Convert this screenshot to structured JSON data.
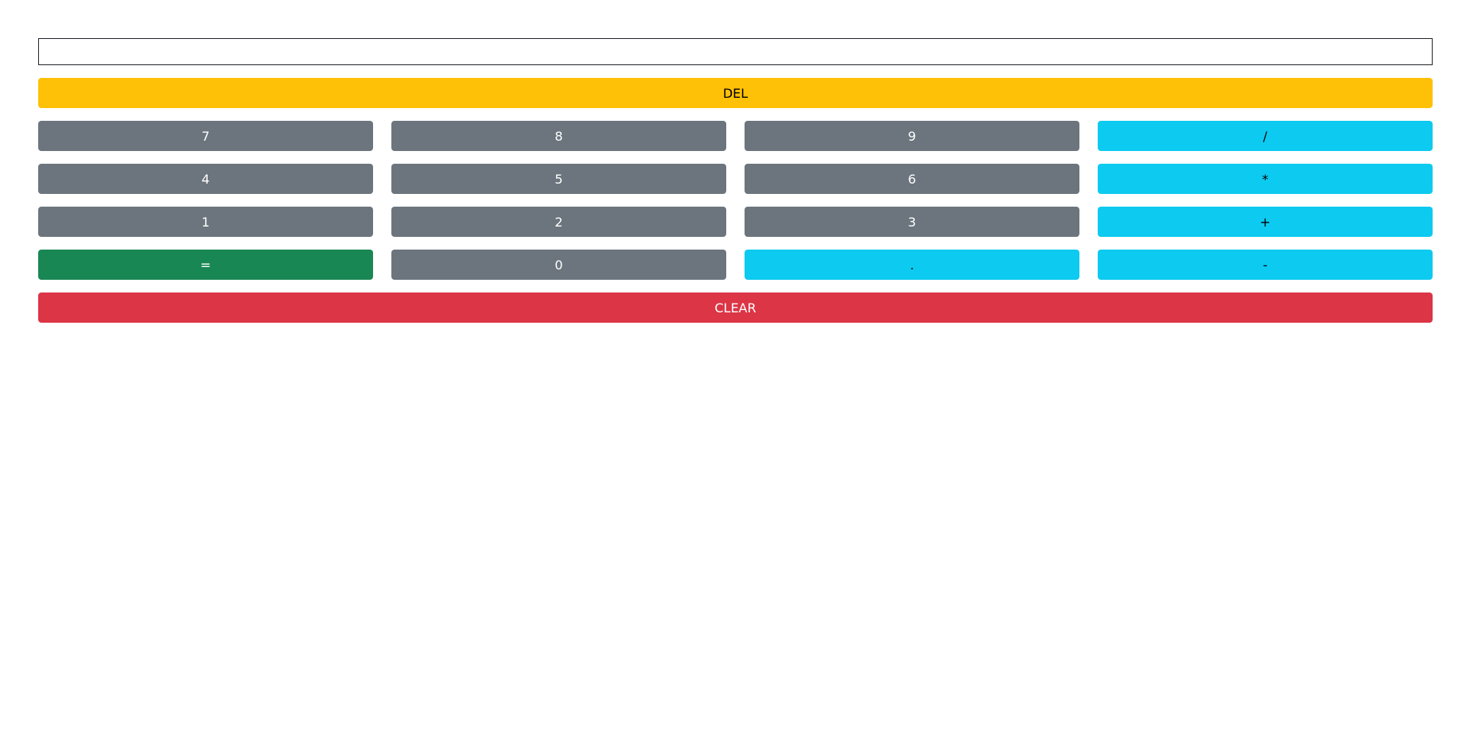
{
  "display": {
    "value": ""
  },
  "del_label": "DEL",
  "clear_label": "CLEAR",
  "keys": {
    "seven": "7",
    "eight": "8",
    "nine": "9",
    "divide": "/",
    "four": "4",
    "five": "5",
    "six": "6",
    "multiply": "*",
    "one": "1",
    "two": "2",
    "three": "3",
    "plus": "+",
    "equals": "=",
    "zero": "0",
    "decimal": ".",
    "minus": "-"
  },
  "colors": {
    "secondary": "#6c757d",
    "info": "#0dcaf0",
    "success": "#198754",
    "warning": "#ffc107",
    "danger": "#dc3545"
  }
}
